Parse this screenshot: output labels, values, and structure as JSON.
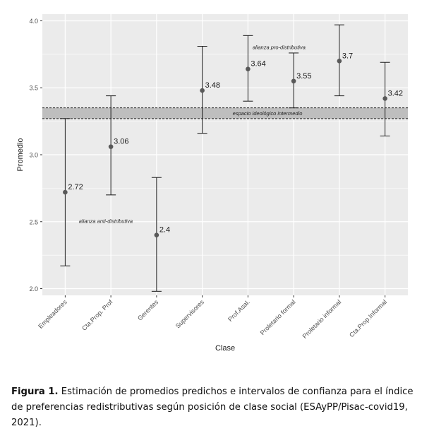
{
  "chart_data": {
    "type": "scatter",
    "xlabel": "Clase",
    "ylabel": "Promedio",
    "ylim": [
      1.95,
      4.05
    ],
    "yticks": [
      "2.0",
      "2.5",
      "3.0",
      "3.5",
      "4.0"
    ],
    "grid": true,
    "categories": [
      "Empleadores",
      "Cta.Prop. Prof",
      "Gerentes",
      "Supervisores",
      "Prof.Asal.",
      "Proletario formal",
      "Proletario informal",
      "Cta.Prop.Informal"
    ],
    "values": [
      2.72,
      3.06,
      2.4,
      3.48,
      3.64,
      3.55,
      3.7,
      3.42
    ],
    "value_labels": [
      "2.72",
      "3.06",
      "2.4",
      "3.48",
      "3.64",
      "3.55",
      "3.7",
      "3.42"
    ],
    "ci_low": [
      2.17,
      2.7,
      1.98,
      3.16,
      3.4,
      3.35,
      3.44,
      3.14
    ],
    "ci_high": [
      3.27,
      3.44,
      2.83,
      3.81,
      3.89,
      3.76,
      3.97,
      3.69
    ],
    "band": {
      "low": 3.27,
      "high": 3.35,
      "label": "espacio ideológico intermedio"
    },
    "annotations": [
      {
        "text": "alianza pro-distributiva",
        "x_index": 4.1,
        "y": 3.79
      },
      {
        "text": "alianza anti-distributiva",
        "x_index": 0.3,
        "y": 2.49
      }
    ],
    "colors": {
      "panel": "#ebebeb",
      "grid": "#ffffff",
      "point": "#595959",
      "band": "#bebebe"
    }
  },
  "caption": {
    "label": "Figura 1.",
    "text": " Estimación de promedios predichos e intervalos de confianza para el índice de preferencias redistributivas según posición de clase social (ESAyPP/Pisac-covid19, 2021)."
  }
}
